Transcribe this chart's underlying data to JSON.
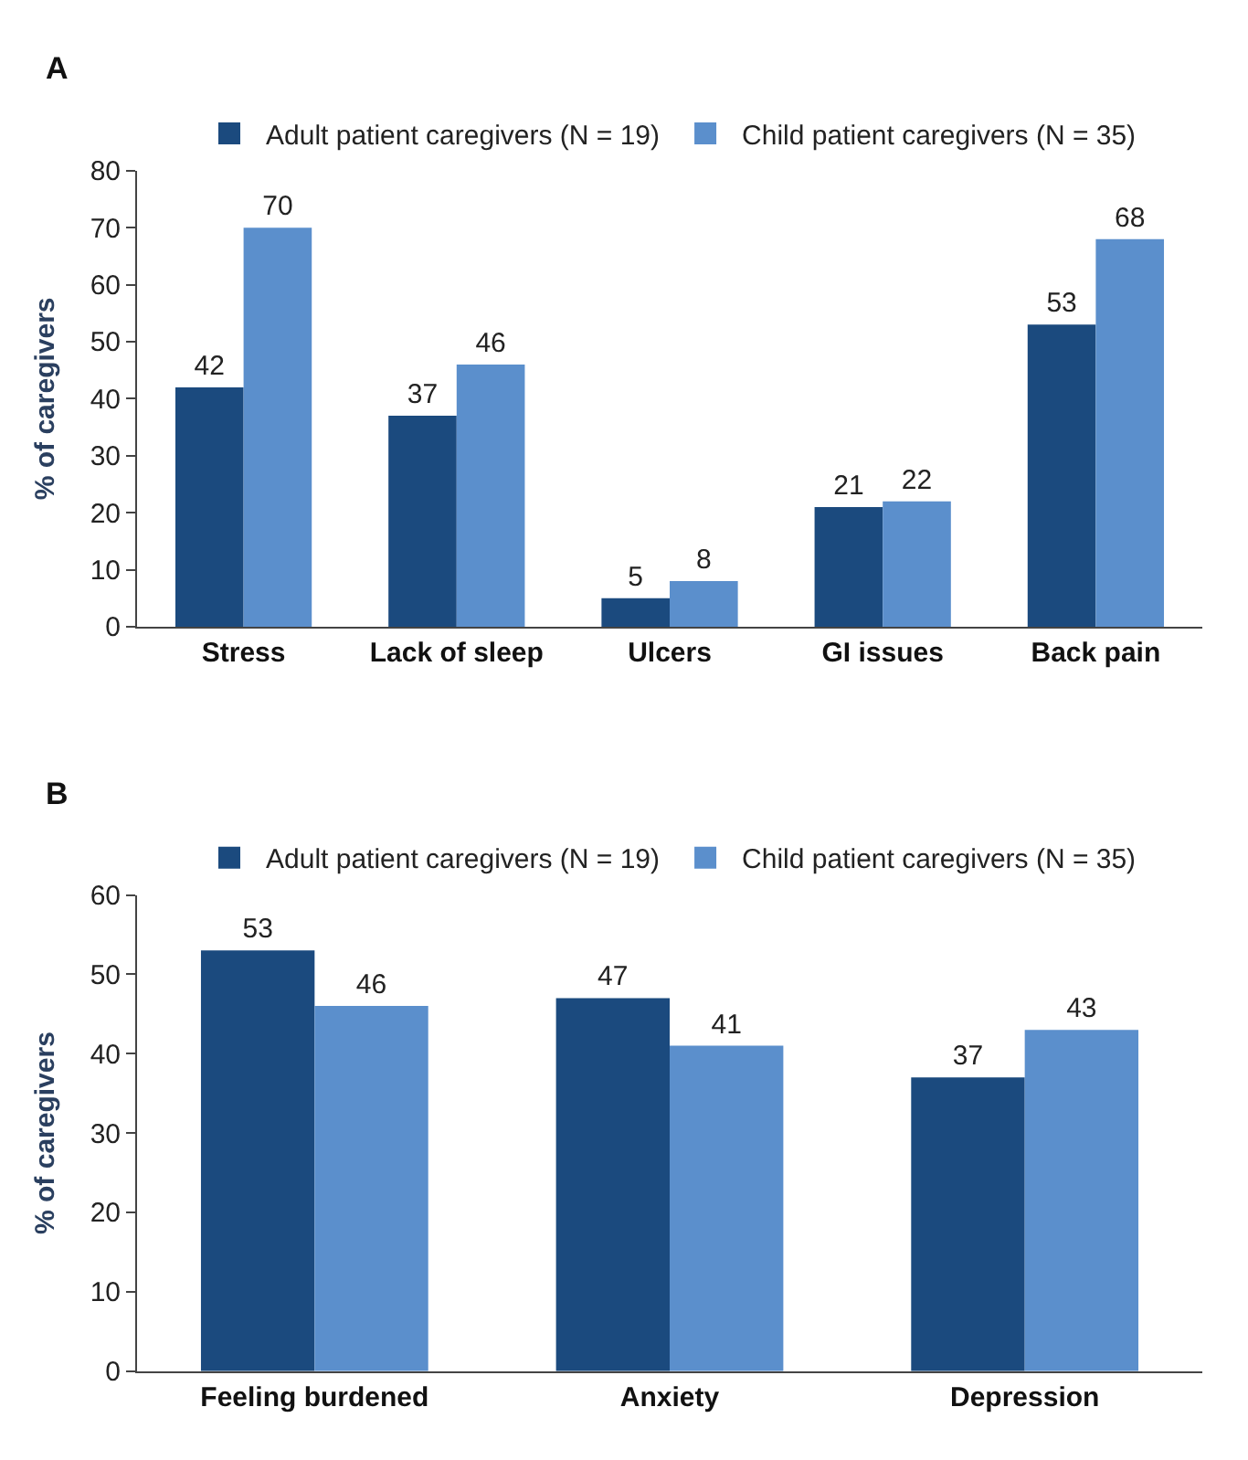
{
  "chart_data": [
    {
      "type": "bar",
      "title": "A",
      "ylabel": "% of caregivers",
      "categories": [
        "Stress",
        "Lack of sleep",
        "Ulcers",
        "GI issues",
        "Back pain"
      ],
      "series": [
        {
          "name": "Adult patient caregivers (N = 19)",
          "color": "#1b4a7e",
          "values": [
            42,
            37,
            5,
            21,
            53
          ]
        },
        {
          "name": "Child patient caregivers (N = 35)",
          "color": "#5b8fcc",
          "values": [
            70,
            46,
            8,
            22,
            68
          ]
        }
      ],
      "ylim": [
        0,
        80
      ],
      "yticks": [
        0,
        10,
        20,
        30,
        40,
        50,
        60,
        70,
        80
      ],
      "data_labels": true,
      "legend": "top"
    },
    {
      "type": "bar",
      "title": "B",
      "ylabel": "% of caregivers",
      "categories": [
        "Feeling burdened",
        "Anxiety",
        "Depression"
      ],
      "series": [
        {
          "name": "Adult patient caregivers (N = 19)",
          "color": "#1b4a7e",
          "values": [
            53,
            47,
            37
          ]
        },
        {
          "name": "Child patient caregivers (N = 35)",
          "color": "#5b8fcc",
          "values": [
            46,
            41,
            43
          ]
        }
      ],
      "ylim": [
        0,
        60
      ],
      "yticks": [
        0,
        10,
        20,
        30,
        40,
        50,
        60
      ],
      "data_labels": true,
      "legend": "top"
    }
  ]
}
